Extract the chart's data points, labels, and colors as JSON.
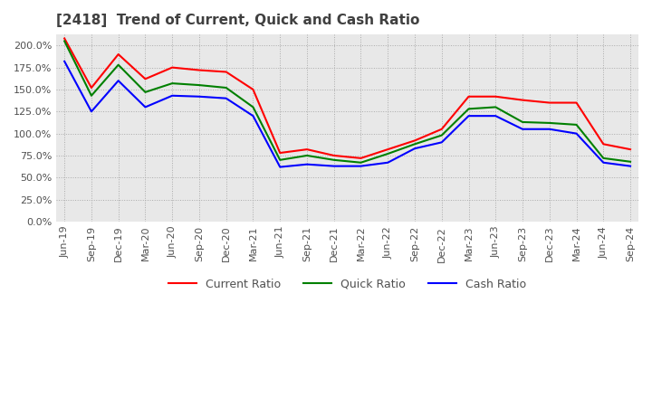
{
  "title": "[2418]  Trend of Current, Quick and Cash Ratio",
  "x_labels": [
    "Jun-19",
    "Sep-19",
    "Dec-19",
    "Mar-20",
    "Jun-20",
    "Sep-20",
    "Dec-20",
    "Mar-21",
    "Jun-21",
    "Sep-21",
    "Dec-21",
    "Mar-22",
    "Jun-22",
    "Sep-22",
    "Dec-22",
    "Mar-23",
    "Jun-23",
    "Sep-23",
    "Dec-23",
    "Mar-24",
    "Jun-24",
    "Sep-24"
  ],
  "current_ratio": [
    2.08,
    1.52,
    1.9,
    1.62,
    1.75,
    1.72,
    1.7,
    1.5,
    0.78,
    0.82,
    0.75,
    0.72,
    0.82,
    0.92,
    1.05,
    1.42,
    1.42,
    1.38,
    1.35,
    1.35,
    0.88,
    0.82
  ],
  "quick_ratio": [
    2.05,
    1.43,
    1.78,
    1.47,
    1.57,
    1.55,
    1.52,
    1.3,
    0.7,
    0.75,
    0.7,
    0.67,
    0.77,
    0.88,
    0.98,
    1.28,
    1.3,
    1.13,
    1.12,
    1.1,
    0.72,
    0.68
  ],
  "cash_ratio": [
    1.82,
    1.25,
    1.6,
    1.3,
    1.43,
    1.42,
    1.4,
    1.2,
    0.62,
    0.65,
    0.63,
    0.63,
    0.67,
    0.83,
    0.9,
    1.2,
    1.2,
    1.05,
    1.05,
    1.0,
    0.67,
    0.63
  ],
  "current_color": "#FF0000",
  "quick_color": "#008000",
  "cash_color": "#0000FF",
  "ylim": [
    0.0,
    2.125
  ],
  "yticks": [
    0.0,
    0.25,
    0.5,
    0.75,
    1.0,
    1.25,
    1.5,
    1.75,
    2.0
  ],
  "bg_color": "#ffffff",
  "plot_bg_color": "#e8e8e8",
  "grid_color": "#aaaaaa",
  "title_color": "#404040",
  "title_fontsize": 11,
  "legend_fontsize": 9,
  "tick_fontsize": 8
}
